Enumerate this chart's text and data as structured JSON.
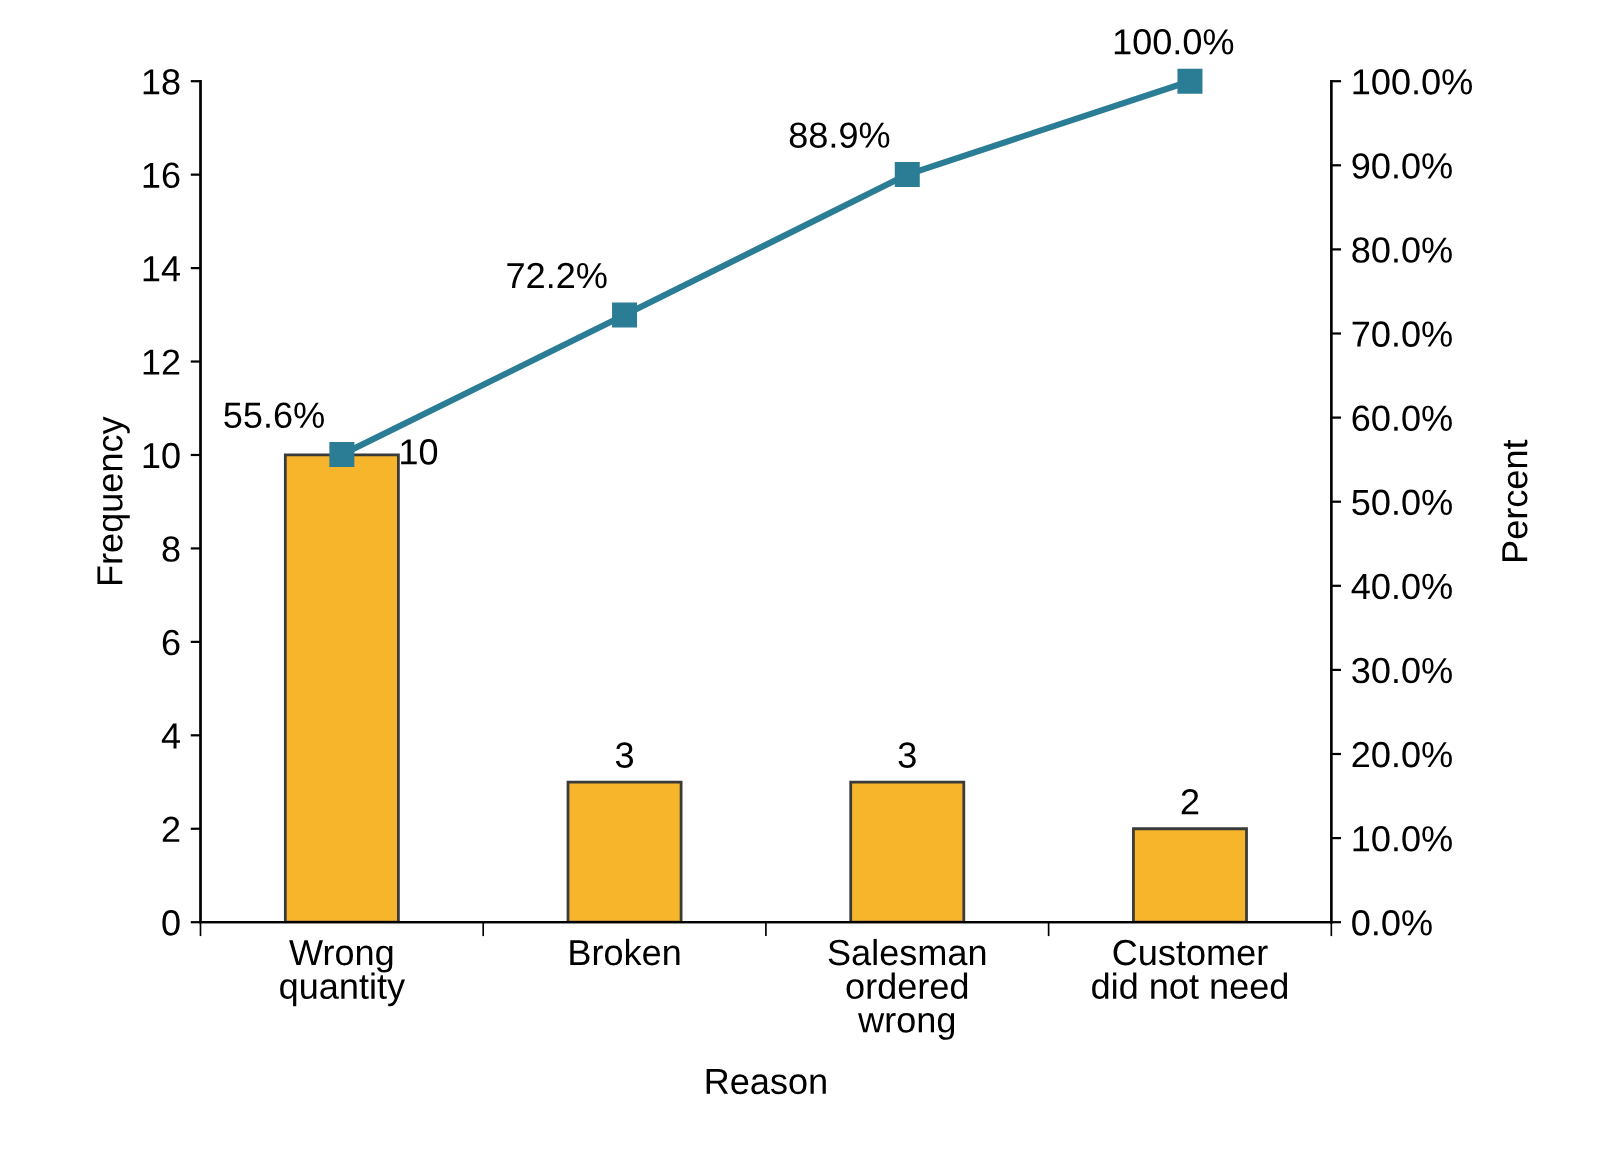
{
  "chart_data": {
    "type": "bar",
    "xlabel": "Reason",
    "ylabel": "Frequency",
    "y2label": "Percent",
    "categories": [
      "Wrong\nquantity",
      "Broken",
      "Salesman\nordered\nwrong",
      "Customer\ndid not need"
    ],
    "series": [
      {
        "color": "#f7b52c",
        "values": [
          10,
          3,
          3,
          2
        ],
        "value_labels": [
          "10",
          "3",
          "3",
          "2"
        ]
      },
      {
        "type": "line",
        "axis": "y2",
        "color": "#2a7d95",
        "marker": "square",
        "values": [
          55.6,
          72.2,
          88.9,
          100.0
        ],
        "value_labels": [
          "55.6%",
          "72.2%",
          "88.9%",
          "100.0%"
        ]
      }
    ],
    "ylim": [
      0,
      18
    ],
    "yticks": [
      0,
      2,
      4,
      6,
      8,
      10,
      12,
      14,
      16,
      18
    ],
    "y2lim": [
      0,
      100
    ],
    "y2ticks": [
      {
        "value": 0,
        "label": "0.0%"
      },
      {
        "value": 10,
        "label": "10.0%"
      },
      {
        "value": 20,
        "label": "20.0%"
      },
      {
        "value": 30,
        "label": "30.0%"
      },
      {
        "value": 40,
        "label": "40.0%"
      },
      {
        "value": 50,
        "label": "50.0%"
      },
      {
        "value": 60,
        "label": "60.0%"
      },
      {
        "value": 70,
        "label": "70.0%"
      },
      {
        "value": 80,
        "label": "80.0%"
      },
      {
        "value": 90,
        "label": "90.0%"
      },
      {
        "value": 100,
        "label": "100.0%"
      }
    ],
    "grid": false,
    "legend": false
  }
}
